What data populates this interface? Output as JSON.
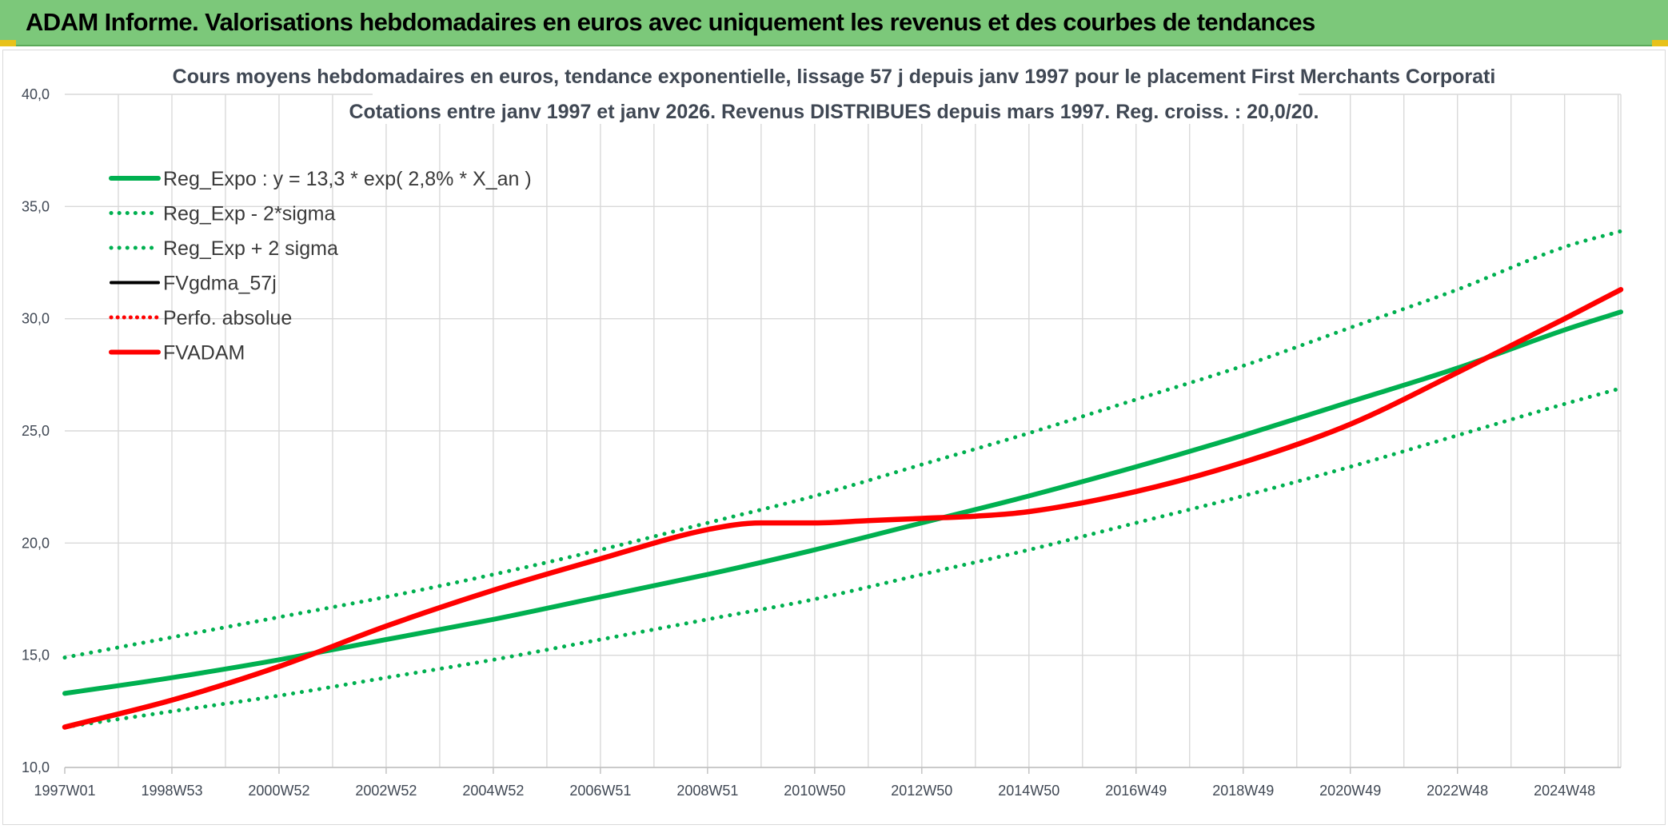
{
  "header": {
    "title": "ADAM Informe. Valorisations hebdomadaires en euros avec uniquement les revenus et des courbes de tendances"
  },
  "colors": {
    "banner": "#7cc87a",
    "green": "#00b050",
    "red": "#ff0000",
    "black": "#000000",
    "grid": "#d9d9d9"
  },
  "chart_data": {
    "type": "line",
    "title_lines": [
      "Cours moyens hebdomadaires en euros, tendance exponentielle, lissage 57 j depuis janv 1997 pour le placement First Merchants Corporati",
      "Cotations entre janv 1997 et janv 2026. Revenus DISTRIBUES depuis mars 1997. Reg. croiss. : 20,0/20."
    ],
    "x_range": [
      1997.0,
      2026.05
    ],
    "x_tick_labels": [
      "1997W01",
      "1998W53",
      "2000W52",
      "2002W52",
      "2004W52",
      "2006W51",
      "2008W51",
      "2010W50",
      "2012W50",
      "2014W50",
      "2016W49",
      "2018W49",
      "2020W49",
      "2022W48",
      "2024W48"
    ],
    "x_tick_years": [
      1997.0,
      1999.0,
      2001.0,
      2003.0,
      2005.0,
      2007.0,
      2009.0,
      2011.0,
      2013.0,
      2015.0,
      2017.0,
      2019.0,
      2021.0,
      2023.0,
      2025.0
    ],
    "ylim": [
      10,
      40
    ],
    "y_ticks": [
      "10,0",
      "15,0",
      "20,0",
      "25,0",
      "30,0",
      "35,0",
      "40,0"
    ],
    "y_tick_values": [
      10,
      15,
      20,
      25,
      30,
      35,
      40
    ],
    "grid": true,
    "legend_position": "top-left",
    "series": [
      {
        "name": "Reg_Expo : y = 13,3 * exp( 2,8% *  X_an )",
        "color": "#00b050",
        "style": "solid",
        "x": [
          1997.0,
          1999.0,
          2001.0,
          2003.0,
          2005.0,
          2007.0,
          2009.0,
          2011.0,
          2013.0,
          2015.0,
          2017.0,
          2019.0,
          2021.0,
          2023.0,
          2025.0,
          2026.05
        ],
        "values": [
          13.3,
          14.0,
          14.8,
          15.7,
          16.6,
          17.6,
          18.6,
          19.7,
          20.9,
          22.1,
          23.4,
          24.8,
          26.3,
          27.8,
          29.5,
          30.3
        ]
      },
      {
        "name": "Reg_Exp - 2*sigma",
        "color": "#00b050",
        "style": "dotted",
        "x": [
          1997.0,
          1999.0,
          2001.0,
          2003.0,
          2005.0,
          2007.0,
          2009.0,
          2011.0,
          2013.0,
          2015.0,
          2017.0,
          2019.0,
          2021.0,
          2023.0,
          2025.0,
          2026.05
        ],
        "values": [
          11.8,
          12.5,
          13.2,
          14.0,
          14.8,
          15.7,
          16.6,
          17.5,
          18.6,
          19.7,
          20.9,
          22.1,
          23.4,
          24.8,
          26.2,
          26.9
        ]
      },
      {
        "name": "Reg_Exp + 2 sigma",
        "color": "#00b050",
        "style": "dotted",
        "x": [
          1997.0,
          1999.0,
          2001.0,
          2003.0,
          2005.0,
          2007.0,
          2009.0,
          2011.0,
          2013.0,
          2015.0,
          2017.0,
          2019.0,
          2021.0,
          2023.0,
          2025.0,
          2026.05
        ],
        "values": [
          14.9,
          15.8,
          16.7,
          17.6,
          18.6,
          19.7,
          20.9,
          22.1,
          23.5,
          24.9,
          26.4,
          27.9,
          29.6,
          31.3,
          33.2,
          33.9
        ]
      },
      {
        "name": "FVgdma_57j",
        "color": "#000000",
        "style": "solid",
        "x": [
          1997.0,
          1999.0,
          2001.0,
          2003.0,
          2005.0,
          2007.0,
          2009.0,
          2010.0,
          2011.0,
          2012.0,
          2013.0,
          2014.0,
          2015.0,
          2017.0,
          2019.0,
          2021.0,
          2023.0,
          2025.0,
          2026.05
        ],
        "values": [
          11.8,
          13.0,
          14.5,
          16.3,
          17.9,
          19.3,
          20.6,
          20.9,
          20.9,
          21.0,
          21.1,
          21.2,
          21.4,
          22.3,
          23.6,
          25.3,
          27.6,
          30.0,
          31.3
        ]
      },
      {
        "name": "Perfo. absolue",
        "color": "#ff0000",
        "style": "dotted",
        "x": [
          1997.0,
          1999.0,
          2001.0,
          2003.0,
          2005.0,
          2007.0,
          2009.0,
          2010.0,
          2011.0,
          2012.0,
          2013.0,
          2014.0,
          2015.0,
          2017.0,
          2019.0,
          2021.0,
          2023.0,
          2025.0,
          2026.05
        ],
        "values": [
          11.8,
          13.0,
          14.5,
          16.3,
          17.9,
          19.3,
          20.6,
          20.9,
          20.9,
          21.0,
          21.1,
          21.2,
          21.4,
          22.3,
          23.6,
          25.3,
          27.6,
          30.0,
          31.3
        ]
      },
      {
        "name": "FVADAM",
        "color": "#ff0000",
        "style": "solid",
        "x": [
          1997.0,
          1999.0,
          2001.0,
          2003.0,
          2005.0,
          2007.0,
          2009.0,
          2010.0,
          2011.0,
          2012.0,
          2013.0,
          2014.0,
          2015.0,
          2017.0,
          2019.0,
          2021.0,
          2023.0,
          2025.0,
          2026.05
        ],
        "values": [
          11.8,
          13.0,
          14.5,
          16.3,
          17.9,
          19.3,
          20.6,
          20.9,
          20.9,
          21.0,
          21.1,
          21.2,
          21.4,
          22.3,
          23.6,
          25.3,
          27.6,
          30.0,
          31.3
        ]
      }
    ]
  }
}
